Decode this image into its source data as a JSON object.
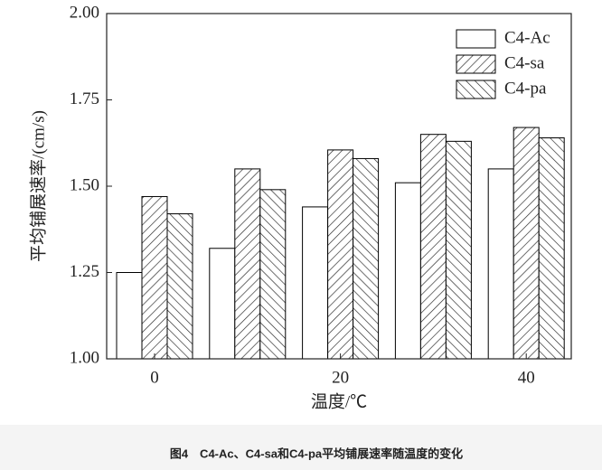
{
  "chart_data": {
    "type": "bar",
    "ylabel": "平均铺展速率/(cm/s)",
    "xlabel": "温度/℃",
    "caption": "图4　C4-Ac、C4-sa和C4-pa平均铺展速率随温度的变化",
    "categories": [
      "0",
      null,
      "20",
      null,
      "40"
    ],
    "series": [
      {
        "name": "C4-Ac",
        "color": "#000000",
        "hatch": "none",
        "values": [
          1.25,
          1.32,
          1.44,
          1.51,
          1.55
        ]
      },
      {
        "name": "C4-sa",
        "color": "#000000",
        "hatch": "/",
        "values": [
          1.47,
          1.55,
          1.605,
          1.65,
          1.67
        ]
      },
      {
        "name": "C4-pa",
        "color": "#000000",
        "hatch": "\\",
        "values": [
          1.42,
          1.49,
          1.58,
          1.63,
          1.64
        ]
      }
    ],
    "ylim": [
      1.0,
      2.0
    ],
    "yticks": [
      {
        "value": 1.0,
        "label": "1.00"
      },
      1.25,
      {
        "value": 1.5,
        "label": "1.50"
      },
      1.75,
      {
        "value": 2.0,
        "label": "2.00"
      }
    ],
    "legend": "upper right"
  }
}
